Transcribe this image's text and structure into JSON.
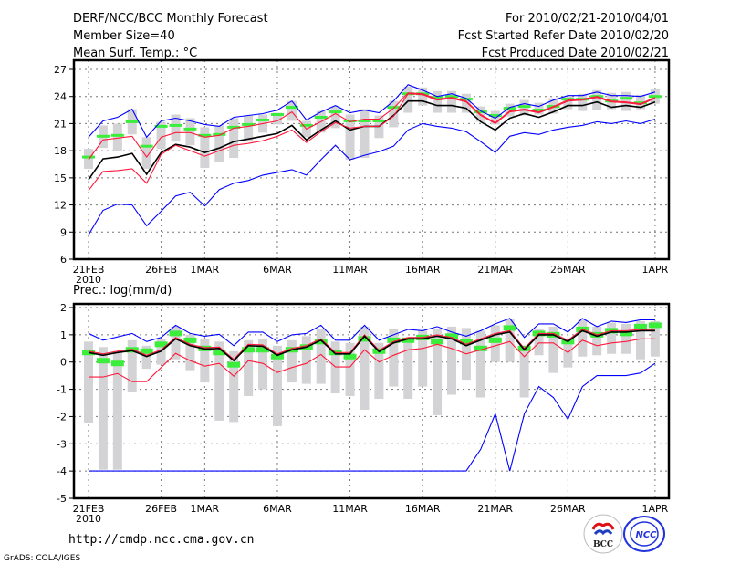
{
  "header": {
    "title": "DERF/NCC/BCC Monthly Forecast",
    "member_size": "Member Size=40",
    "variable_top": "Mean Surf. Temp.: °C",
    "fcst_range": "For 2010/02/21-2010/04/01",
    "started": "Fcst Started Refer Date 2010/02/20",
    "produced": "Fcst Produced Date 2010/02/21"
  },
  "footer": {
    "url": "http://cmdp.ncc.cma.gov.cn",
    "grads": "GrADS: COLA/IGES",
    "logo_bcc": "BCC",
    "logo_ncc": "NCC"
  },
  "colors": {
    "max_min": "#0000ff",
    "spread": "#ff1a3c",
    "mean": "#000000",
    "obs": "#3cee3c",
    "range_bar": "#d3d3d6"
  },
  "chart_data": [
    {
      "type": "line",
      "title": "Mean Surf. Temp.: °C",
      "ylim": [
        6,
        27
      ],
      "yticks": [
        6,
        9,
        12,
        15,
        18,
        21,
        24,
        27
      ],
      "xtick_labels": [
        {
          "day": 0,
          "label": "21FEB",
          "sub": "2010"
        },
        {
          "day": 5,
          "label": "26FEB"
        },
        {
          "day": 8,
          "label": "1MAR"
        },
        {
          "day": 13,
          "label": "6MAR"
        },
        {
          "day": 18,
          "label": "11MAR"
        },
        {
          "day": 23,
          "label": "16MAR"
        },
        {
          "day": 28,
          "label": "21MAR"
        },
        {
          "day": 33,
          "label": "26MAR"
        },
        {
          "day": 39,
          "label": "1APR"
        }
      ],
      "grid": true,
      "days": 40,
      "series": [
        {
          "name": "max",
          "color": "#0000ff",
          "values": [
            19.5,
            21.3,
            21.7,
            22.6,
            19.5,
            21.3,
            21.6,
            21.3,
            20.9,
            20.7,
            21.7,
            21.9,
            22.1,
            22.5,
            23.5,
            21.4,
            22.3,
            23.0,
            22.2,
            22.5,
            22.2,
            23.5,
            25.3,
            24.7,
            24.0,
            24.3,
            23.8,
            22.4,
            21.6,
            22.8,
            23.2,
            22.9,
            23.6,
            24.1,
            24.1,
            24.5,
            24.1,
            24.1,
            24.0,
            24.5
          ]
        },
        {
          "name": "upper",
          "color": "#ff1a3c",
          "values": [
            17.0,
            19.2,
            19.4,
            19.6,
            17.3,
            19.5,
            20.0,
            20.0,
            19.5,
            19.7,
            20.5,
            20.7,
            21.0,
            21.3,
            22.3,
            20.4,
            21.2,
            22.1,
            21.2,
            21.5,
            21.5,
            22.7,
            24.4,
            24.3,
            23.7,
            23.9,
            23.5,
            22.0,
            21.1,
            22.4,
            22.6,
            22.3,
            22.9,
            23.6,
            23.7,
            24.0,
            23.5,
            23.4,
            23.2,
            23.9
          ]
        },
        {
          "name": "mean",
          "color": "#000000",
          "values": [
            14.8,
            17.1,
            17.3,
            17.7,
            15.4,
            17.8,
            18.7,
            18.4,
            17.8,
            18.3,
            19.0,
            19.3,
            19.6,
            19.9,
            20.8,
            19.2,
            20.3,
            21.3,
            20.3,
            20.7,
            20.7,
            21.9,
            23.5,
            23.5,
            23.0,
            23.0,
            22.7,
            21.2,
            20.3,
            21.6,
            22.1,
            21.7,
            22.3,
            23.0,
            23.0,
            23.4,
            22.8,
            23.0,
            22.8,
            23.4
          ]
        },
        {
          "name": "lower",
          "color": "#ff1a3c",
          "values": [
            13.6,
            15.7,
            15.8,
            16.0,
            14.4,
            17.6,
            18.6,
            18.0,
            17.4,
            18.0,
            18.6,
            18.8,
            19.1,
            19.6,
            20.3,
            18.9,
            20.1,
            21.1,
            20.5,
            20.7,
            20.7,
            21.8,
            24.3,
            24.2,
            23.6,
            23.8,
            23.4,
            21.9,
            21.0,
            22.3,
            22.5,
            22.2,
            22.8,
            23.5,
            23.6,
            23.9,
            23.4,
            23.3,
            23.1,
            23.8
          ]
        },
        {
          "name": "min",
          "color": "#0000ff",
          "values": [
            8.7,
            11.4,
            12.1,
            12.0,
            9.7,
            11.3,
            13.0,
            13.4,
            11.9,
            13.7,
            14.4,
            14.7,
            15.3,
            15.6,
            15.9,
            15.3,
            17.0,
            18.6,
            17.0,
            17.5,
            17.9,
            18.5,
            20.3,
            21.0,
            20.7,
            20.5,
            20.1,
            19.0,
            17.8,
            19.6,
            20.0,
            19.8,
            20.3,
            20.6,
            20.8,
            21.2,
            21.0,
            21.3,
            21.0,
            21.5
          ]
        }
      ],
      "obs": [
        17.3,
        19.6,
        19.7,
        21.2,
        18.5,
        20.7,
        20.8,
        20.4,
        19.7,
        19.8,
        20.6,
        20.9,
        21.4,
        22.0,
        22.8,
        20.8,
        21.7,
        22.3,
        21.3,
        21.3,
        21.3,
        22.8,
        24.3,
        24.3,
        23.9,
        24.0,
        23.7,
        22.3,
        21.9,
        22.7,
        22.9,
        22.5,
        22.9,
        23.7,
        23.7,
        24.0,
        23.5,
        23.8,
        23.3,
        24.0
      ],
      "range_bars": [
        [
          16.0,
          18.2
        ],
        [
          18.3,
          20.8
        ],
        [
          18.0,
          21.0
        ],
        [
          19.8,
          22.6
        ],
        [
          16.0,
          19.5
        ],
        [
          18.2,
          21.2
        ],
        [
          19.0,
          22.0
        ],
        [
          18.6,
          21.6
        ],
        [
          16.1,
          20.6
        ],
        [
          16.7,
          20.8
        ],
        [
          17.2,
          21.6
        ],
        [
          19.0,
          21.9
        ],
        [
          20.0,
          22.0
        ],
        [
          20.9,
          22.2
        ],
        [
          21.3,
          23.5
        ],
        [
          19.5,
          21.3
        ],
        [
          20.0,
          22.4
        ],
        [
          20.5,
          22.9
        ],
        [
          17.0,
          22.0
        ],
        [
          17.2,
          22.6
        ],
        [
          19.4,
          21.9
        ],
        [
          20.6,
          23.5
        ],
        [
          22.2,
          25.1
        ],
        [
          23.0,
          25.0
        ],
        [
          22.2,
          24.6
        ],
        [
          22.2,
          24.6
        ],
        [
          22.2,
          24.3
        ],
        [
          21.2,
          22.9
        ],
        [
          20.9,
          22.4
        ],
        [
          21.8,
          23.2
        ],
        [
          21.9,
          23.6
        ],
        [
          22.0,
          23.3
        ],
        [
          22.1,
          23.8
        ],
        [
          22.6,
          24.0
        ],
        [
          22.4,
          24.3
        ],
        [
          22.5,
          24.7
        ],
        [
          22.6,
          24.4
        ],
        [
          22.4,
          24.5
        ],
        [
          22.6,
          24.2
        ],
        [
          23.2,
          24.8
        ]
      ]
    },
    {
      "type": "line",
      "title": "Prec.: log(mm/d)",
      "ylim": [
        -5,
        2
      ],
      "yticks": [
        -5,
        -4,
        -3,
        -2,
        -1,
        0,
        1,
        2
      ],
      "xtick_labels": [
        {
          "day": 0,
          "label": "21FEB",
          "sub": "2010"
        },
        {
          "day": 5,
          "label": "26FEB"
        },
        {
          "day": 8,
          "label": "1MAR"
        },
        {
          "day": 13,
          "label": "6MAR"
        },
        {
          "day": 18,
          "label": "11MAR"
        },
        {
          "day": 23,
          "label": "16MAR"
        },
        {
          "day": 28,
          "label": "21MAR"
        },
        {
          "day": 33,
          "label": "26MAR"
        },
        {
          "day": 39,
          "label": "1APR"
        }
      ],
      "grid": true,
      "days": 40,
      "series": [
        {
          "name": "max",
          "color": "#0000ff",
          "values": [
            1.05,
            0.8,
            0.92,
            1.05,
            0.75,
            0.9,
            1.35,
            1.05,
            0.95,
            1.02,
            0.6,
            1.1,
            1.1,
            0.75,
            1.0,
            1.05,
            1.35,
            0.8,
            0.8,
            1.35,
            0.8,
            1.0,
            1.2,
            1.15,
            1.3,
            1.1,
            0.95,
            1.15,
            1.4,
            1.6,
            0.9,
            1.4,
            1.4,
            1.1,
            1.6,
            1.3,
            1.5,
            1.45,
            1.55,
            1.55
          ]
        },
        {
          "name": "upper",
          "color": "#ff1a3c",
          "values": [
            0.4,
            0.3,
            0.4,
            0.47,
            0.25,
            0.45,
            0.9,
            0.65,
            0.53,
            0.55,
            0.1,
            0.65,
            0.63,
            0.3,
            0.5,
            0.6,
            0.85,
            0.35,
            0.35,
            1.0,
            0.43,
            0.75,
            0.9,
            0.9,
            1.0,
            0.9,
            0.65,
            0.85,
            1.05,
            1.15,
            0.5,
            1.05,
            1.05,
            0.8,
            1.2,
            1.0,
            1.15,
            1.15,
            1.2,
            1.2
          ]
        },
        {
          "name": "mean",
          "color": "#000000",
          "values": [
            0.35,
            0.25,
            0.35,
            0.42,
            0.2,
            0.4,
            0.85,
            0.6,
            0.48,
            0.5,
            0.05,
            0.6,
            0.58,
            0.25,
            0.45,
            0.55,
            0.8,
            0.3,
            0.3,
            0.95,
            0.38,
            0.7,
            0.85,
            0.85,
            0.95,
            0.85,
            0.6,
            0.8,
            1.0,
            1.1,
            0.45,
            1.0,
            1.0,
            0.75,
            1.15,
            0.95,
            1.1,
            1.1,
            1.15,
            1.15
          ]
        },
        {
          "name": "lower",
          "color": "#ff1a3c",
          "values": [
            -0.55,
            -0.55,
            -0.42,
            -0.72,
            -0.72,
            -0.2,
            0.32,
            0.05,
            -0.15,
            -0.05,
            -0.52,
            0.05,
            -0.05,
            -0.38,
            -0.2,
            -0.05,
            0.28,
            -0.18,
            -0.18,
            0.45,
            0.0,
            0.25,
            0.45,
            0.5,
            0.65,
            0.5,
            0.3,
            0.45,
            0.6,
            0.75,
            0.2,
            0.7,
            0.7,
            0.35,
            0.8,
            0.6,
            0.7,
            0.75,
            0.85,
            0.85
          ]
        },
        {
          "name": "min",
          "color": "#0000ff",
          "values": [
            -4,
            -4,
            -4,
            -4,
            -4,
            -4,
            -4,
            -4,
            -4,
            -4,
            -4,
            -4,
            -4,
            -4,
            -4,
            -4,
            -4,
            -4,
            -4,
            -4,
            -4,
            -4,
            -4,
            -4,
            -4,
            -4,
            -4,
            -3.2,
            -1.9,
            -4,
            -1.9,
            -0.9,
            -1.3,
            -2.1,
            -0.9,
            -0.5,
            -0.5,
            -0.5,
            -0.4,
            -0.05
          ]
        }
      ],
      "obs": [
        0.35,
        0.05,
        -0.05,
        0.45,
        0.4,
        0.65,
        1.05,
        0.8,
        0.5,
        0.35,
        -0.1,
        0.45,
        0.45,
        0.2,
        0.45,
        0.55,
        0.75,
        0.35,
        0.2,
        0.85,
        0.4,
        0.8,
        0.8,
        0.9,
        0.75,
        0.95,
        0.75,
        0.5,
        0.8,
        1.25,
        0.5,
        1.05,
        1.0,
        0.75,
        1.2,
        1.0,
        1.15,
        1.05,
        1.3,
        1.35
      ],
      "range_bars": [
        [
          -2.25,
          0.75
        ],
        [
          -3.95,
          0.55
        ],
        [
          -3.95,
          0.4
        ],
        [
          -1.1,
          0.8
        ],
        [
          -0.25,
          0.6
        ],
        [
          -0.1,
          0.85
        ],
        [
          0.1,
          1.3
        ],
        [
          -0.3,
          1.0
        ],
        [
          -0.75,
          0.85
        ],
        [
          -2.15,
          0.75
        ],
        [
          -2.2,
          0.4
        ],
        [
          -1.25,
          0.8
        ],
        [
          -1.0,
          0.85
        ],
        [
          -2.35,
          0.6
        ],
        [
          -0.75,
          0.8
        ],
        [
          -0.8,
          0.95
        ],
        [
          -0.8,
          1.2
        ],
        [
          -1.15,
          0.75
        ],
        [
          -1.25,
          0.7
        ],
        [
          -1.75,
          1.3
        ],
        [
          -1.35,
          0.7
        ],
        [
          -0.9,
          1.2
        ],
        [
          -1.35,
          0.7
        ],
        [
          -0.9,
          1.15
        ],
        [
          -1.95,
          1.2
        ],
        [
          -1.2,
          1.3
        ],
        [
          -0.65,
          1.25
        ],
        [
          -1.3,
          1.15
        ],
        [
          0.0,
          1.35
        ],
        [
          0.0,
          1.6
        ],
        [
          -1.3,
          0.6
        ],
        [
          0.25,
          1.2
        ],
        [
          -0.4,
          1.3
        ],
        [
          -0.2,
          0.8
        ],
        [
          0.2,
          1.55
        ],
        [
          0.25,
          1.3
        ],
        [
          0.3,
          1.45
        ],
        [
          0.3,
          1.4
        ],
        [
          0.1,
          1.5
        ],
        [
          0.2,
          1.5
        ]
      ]
    }
  ]
}
